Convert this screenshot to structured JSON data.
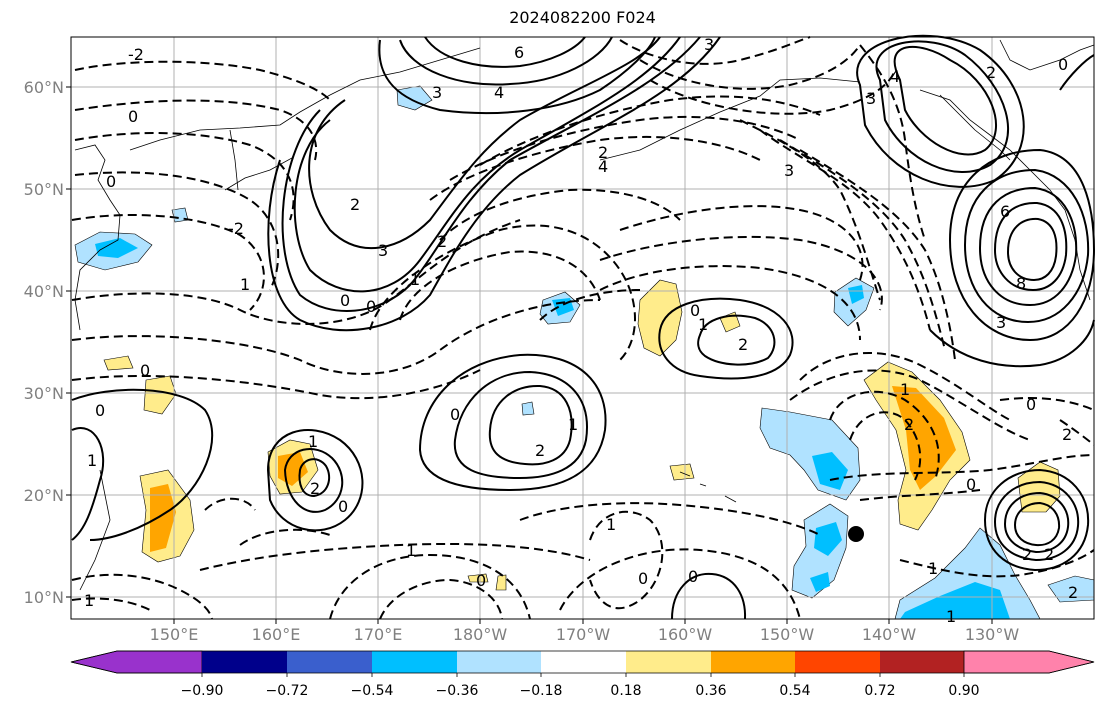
{
  "title": "2024082200 F024",
  "lat_labels": [
    "60°N",
    "50°N",
    "40°N",
    "30°N",
    "20°N",
    "10°N"
  ],
  "lon_labels": [
    "150°E",
    "160°E",
    "170°E",
    "180°W",
    "170°W",
    "160°W",
    "150°W",
    "140°W",
    "130°W"
  ],
  "colorbar": {
    "labels": [
      "−0.90",
      "−0.72",
      "−0.54",
      "−0.36",
      "−0.18",
      "0.18",
      "0.36",
      "0.54",
      "0.72",
      "0.90"
    ],
    "colors": [
      "#9932CC",
      "#00008B",
      "#3A5FCD",
      "#00BFFF",
      "#B0E2FF",
      "#FFFFFF",
      "#FFEC8B",
      "#FFA500",
      "#FF4500",
      "#B22222",
      "#FF82AB"
    ]
  },
  "contour_labels": [
    "6",
    "4",
    "3",
    "2",
    "1",
    "0",
    "-1",
    "-2",
    "-3",
    "-4",
    "8"
  ],
  "marker": "storm-position-dot"
}
